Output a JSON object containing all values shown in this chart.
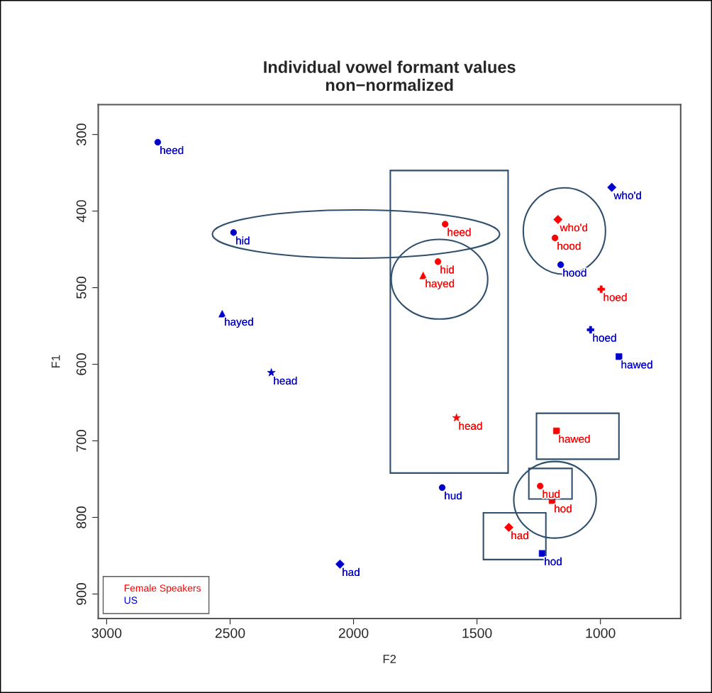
{
  "chart_data": {
    "type": "scatter",
    "title": "Individual vowel formant values\nnon−normalized",
    "xlabel": "F2",
    "ylabel": "F1",
    "xlim": [
      3034,
      675
    ],
    "ylim": [
      932,
      261
    ],
    "xticks": [
      3000,
      2500,
      2000,
      1500,
      1000
    ],
    "yticks": [
      300,
      400,
      500,
      600,
      700,
      800,
      900
    ],
    "grid": false,
    "legend": "bottom left",
    "series": [
      {
        "name": "Female Speakers",
        "color": "#ff0000",
        "marker": "circle",
        "x": [
          1629,
          1658,
          1184,
          1244
        ],
        "values": [
          417,
          466,
          435,
          759
        ],
        "value_labels": [
          "heed",
          "hid",
          "hood",
          "hud"
        ]
      },
      {
        "color": "#ff0000",
        "marker": "triangle",
        "x": [
          1718
        ],
        "values": [
          484
        ],
        "value_labels": [
          "hayed"
        ]
      },
      {
        "color": "#ff0000",
        "marker": "star",
        "x": [
          1583
        ],
        "values": [
          670
        ],
        "value_labels": [
          "head"
        ]
      },
      {
        "color": "#ff0000",
        "marker": "diamond",
        "x": [
          1371,
          1172
        ],
        "values": [
          813,
          411
        ],
        "value_labels": [
          "had",
          "who'd"
        ]
      },
      {
        "color": "#ff0000",
        "marker": "cross",
        "x": [
          997
        ],
        "values": [
          502
        ],
        "value_labels": [
          "hoed"
        ]
      },
      {
        "color": "#ff0000",
        "marker": "square",
        "x": [
          1178,
          1196
        ],
        "values": [
          687,
          778
        ],
        "value_labels": [
          "hawed",
          "hod"
        ]
      },
      {
        "name": "US",
        "color": "#0000cc",
        "marker": "circle",
        "x": [
          2793,
          2486,
          1641,
          1161
        ],
        "values": [
          310,
          428,
          761,
          470
        ],
        "value_labels": [
          "heed",
          "hid",
          "hud",
          "hood"
        ]
      },
      {
        "color": "#0000cc",
        "marker": "triangle",
        "x": [
          2532
        ],
        "values": [
          534
        ],
        "value_labels": [
          "hayed"
        ]
      },
      {
        "color": "#0000cc",
        "marker": "star",
        "x": [
          2333
        ],
        "values": [
          611
        ],
        "value_labels": [
          "head"
        ]
      },
      {
        "color": "#0000cc",
        "marker": "diamond",
        "x": [
          2055,
          954
        ],
        "values": [
          861,
          369
        ],
        "value_labels": [
          "had",
          "who'd"
        ]
      },
      {
        "color": "#0000cc",
        "marker": "cross",
        "x": [
          1040
        ],
        "values": [
          555
        ],
        "value_labels": [
          "hoed"
        ]
      },
      {
        "color": "#0000cc",
        "marker": "square",
        "x": [
          925,
          1236
        ],
        "values": [
          590,
          847
        ],
        "value_labels": [
          "hawed",
          "hod"
        ]
      }
    ]
  }
}
